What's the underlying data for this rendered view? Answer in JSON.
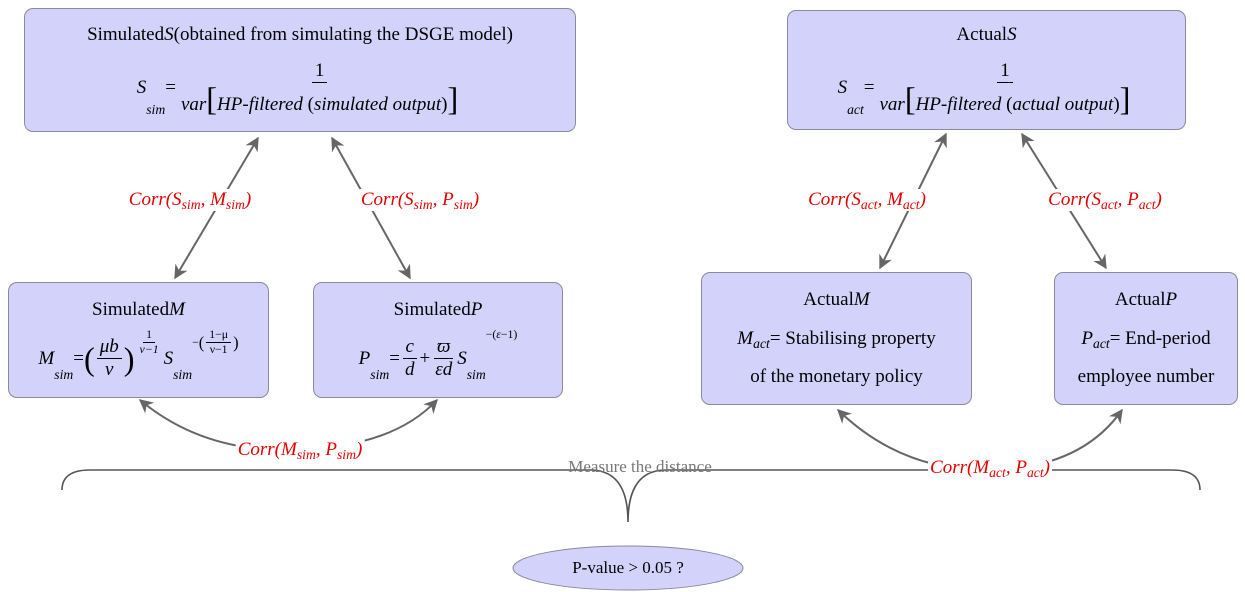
{
  "nodes": [
    {
      "lines": [
        [
          {
            "t": "Simulated "
          },
          {
            "i": "S"
          },
          {
            "t": "  (obtained from simulating the DSGE model)"
          }
        ],
        [
          {
            "i": "S"
          },
          {
            "sub": "sim"
          },
          {
            "t": " = "
          },
          {
            "frac": {
              "num": [
                {
                  "t": "1"
                }
              ],
              "den": [
                {
                  "i": "var"
                },
                {
                  "big": "["
                },
                {
                  "i": "HP-filtered"
                },
                {
                  "t": " ("
                },
                {
                  "i": "simulated output"
                },
                {
                  "t": ")"
                },
                {
                  "big": "]"
                }
              ]
            }
          }
        ]
      ]
    },
    {
      "lines": [
        [
          {
            "t": "Actual "
          },
          {
            "i": "S"
          }
        ],
        [
          {
            "i": "S"
          },
          {
            "sub": "act"
          },
          {
            "t": " = "
          },
          {
            "frac": {
              "num": [
                {
                  "t": "1"
                }
              ],
              "den": [
                {
                  "i": "var"
                },
                {
                  "big": "["
                },
                {
                  "i": "HP-filtered"
                },
                {
                  "t": " ("
                },
                {
                  "i": "actual output"
                },
                {
                  "t": ")"
                },
                {
                  "big": "]"
                }
              ]
            }
          }
        ]
      ]
    },
    {
      "lines": [
        [
          {
            "t": "Simulated "
          },
          {
            "i": "M"
          }
        ],
        [
          {
            "i": "M"
          },
          {
            "sub": "sim"
          },
          {
            "t": " = "
          },
          {
            "big": "("
          },
          {
            "frac": {
              "num": [
                {
                  "i": "μb"
                }
              ],
              "den": [
                {
                  "i": "ν"
                }
              ]
            }
          },
          {
            "big": ")"
          },
          {
            "sup": [
              {
                "frac": {
                  "num": [
                    {
                      "t": "1"
                    }
                  ],
                  "den": [
                    {
                      "i": "ν−1"
                    }
                  ]
                }
              }
            ]
          },
          {
            "t": " "
          },
          {
            "i": "S"
          },
          {
            "sub": "sim"
          },
          {
            "sup": [
              {
                "t": "−"
              },
              {
                "big": "("
              },
              {
                "frac": {
                  "num": [
                    {
                      "t": "1−μ"
                    }
                  ],
                  "den": [
                    {
                      "t": "ν−1"
                    }
                  ]
                }
              },
              {
                "big": ")"
              }
            ]
          }
        ]
      ]
    },
    {
      "lines": [
        [
          {
            "t": "Simulated "
          },
          {
            "i": "P"
          }
        ],
        [
          {
            "i": "P"
          },
          {
            "sub": "sim"
          },
          {
            "t": " = "
          },
          {
            "frac": {
              "num": [
                {
                  "i": "c"
                }
              ],
              "den": [
                {
                  "i": "d"
                }
              ]
            }
          },
          {
            "t": " + "
          },
          {
            "frac": {
              "num": [
                {
                  "i": "ϖ"
                }
              ],
              "den": [
                {
                  "i": "εd"
                }
              ]
            }
          },
          {
            "i": "S"
          },
          {
            "sub": "sim"
          },
          {
            "sup": [
              {
                "t": "−("
              },
              {
                "i": "ε"
              },
              {
                "t": "−1)"
              }
            ]
          }
        ]
      ]
    },
    {
      "lines": [
        [
          {
            "t": "Actual "
          },
          {
            "i": "M"
          }
        ],
        [
          {
            "i": "M"
          },
          {
            "sub": "act"
          },
          {
            "t": " = Stabilising property"
          }
        ],
        [
          {
            "t": "of the monetary policy"
          }
        ]
      ]
    },
    {
      "lines": [
        [
          {
            "t": "Actual "
          },
          {
            "i": "P"
          }
        ],
        [
          {
            "i": "P"
          },
          {
            "sub": "act"
          },
          {
            "t": " = End-period"
          }
        ],
        [
          {
            "t": "employee number"
          }
        ]
      ]
    }
  ],
  "edges": [
    {
      "label": [
        {
          "i": "Corr(S"
        },
        {
          "sub": "sim"
        },
        {
          "i": ", M"
        },
        {
          "sub": "sim"
        },
        {
          "i": ")"
        }
      ]
    },
    {
      "label": [
        {
          "i": "Corr(S"
        },
        {
          "sub": "sim"
        },
        {
          "i": ", P"
        },
        {
          "sub": "sim"
        },
        {
          "i": ")"
        }
      ]
    },
    {
      "label": [
        {
          "i": "Corr(S"
        },
        {
          "sub": "act"
        },
        {
          "i": ", M"
        },
        {
          "sub": "act"
        },
        {
          "i": ")"
        }
      ]
    },
    {
      "label": [
        {
          "i": "Corr(S"
        },
        {
          "sub": "act"
        },
        {
          "i": ", P"
        },
        {
          "sub": "act"
        },
        {
          "i": ")"
        }
      ]
    },
    {
      "label": [
        {
          "i": "Corr(M"
        },
        {
          "sub": "sim"
        },
        {
          "i": ", P"
        },
        {
          "sub": "sim"
        },
        {
          "i": ")"
        }
      ]
    },
    {
      "label": [
        {
          "i": "Corr(M"
        },
        {
          "sub": "act"
        },
        {
          "i": ", P"
        },
        {
          "sub": "act"
        },
        {
          "i": ")"
        }
      ]
    }
  ],
  "brace_label": "Measure the distance",
  "result": "P-value > 0.05 ?"
}
